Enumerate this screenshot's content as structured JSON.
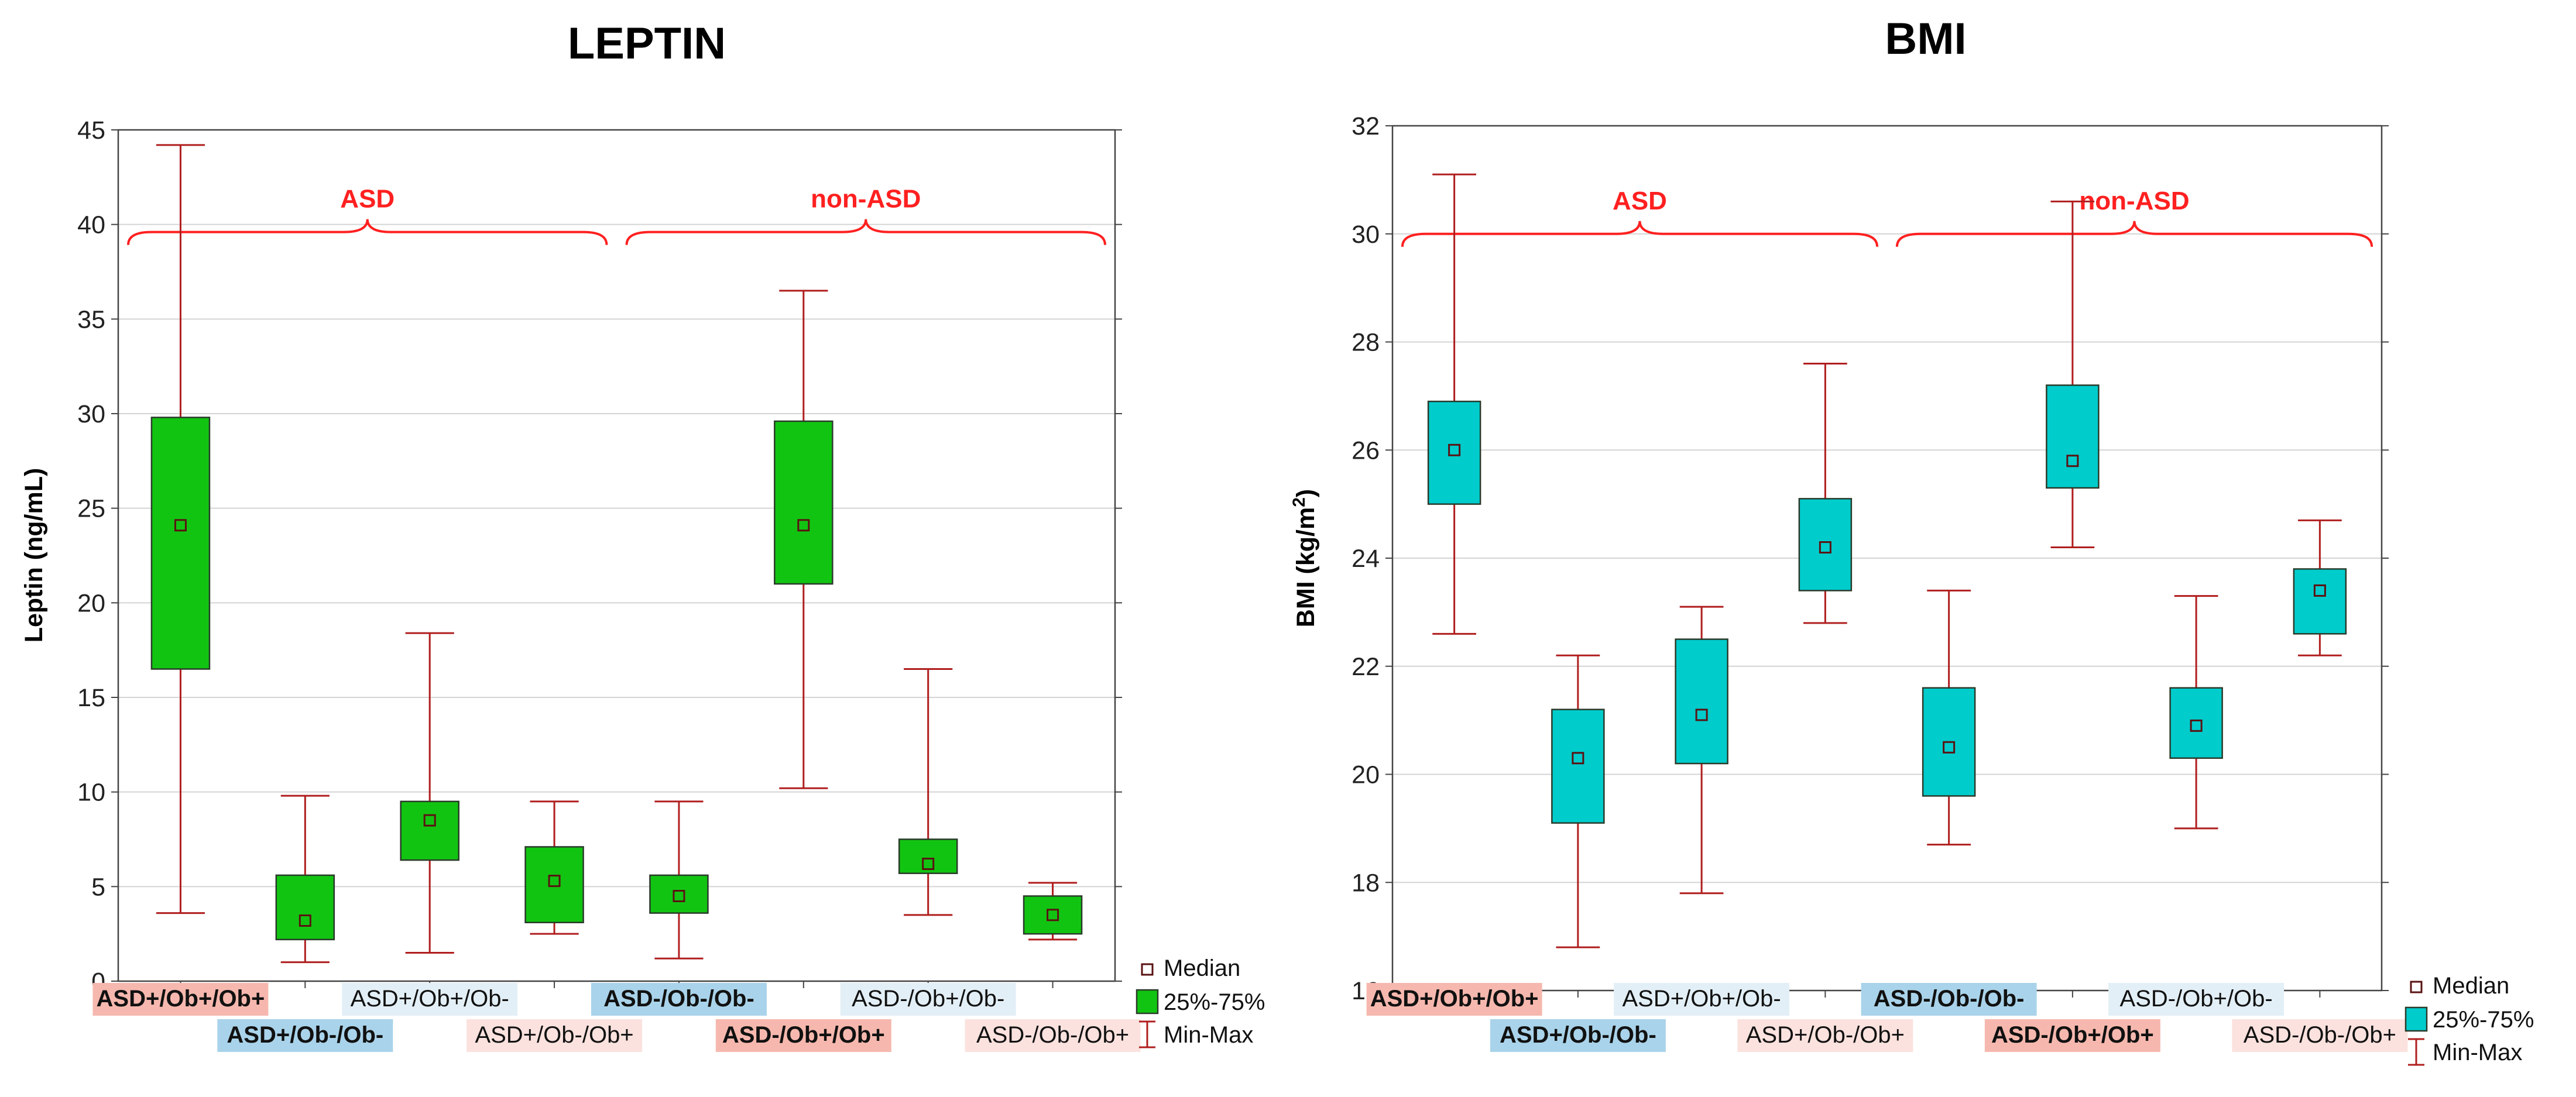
{
  "colors": {
    "whisker": "#b01e1e",
    "median_marker": "#5a1212",
    "group_brace": "#ff2020",
    "grid": "#d4d4d4",
    "axis": "#444444",
    "cat_pink": "#f6b8ae",
    "cat_blue": "#a9d3ea",
    "cat_lightblue": "#e3eff6",
    "cat_lightpink": "#fbe2de"
  },
  "chart_data": [
    {
      "type": "box",
      "title": "LEPTIN",
      "ylabel": "Leptin (ng/mL)",
      "xlabel": "",
      "ylim": [
        0,
        45
      ],
      "yticks": [
        0,
        5,
        10,
        15,
        20,
        25,
        30,
        35,
        40,
        45
      ],
      "grid": true,
      "box_color": "#12c412",
      "categories": [
        "ASD+/Ob+/Ob+",
        "ASD+/Ob-/Ob-",
        "ASD+/Ob+/Ob-",
        "ASD+/Ob-/Ob+",
        "ASD-/Ob-/Ob-",
        "ASD-/Ob+/Ob+",
        "ASD-/Ob+/Ob-",
        "ASD-/Ob-/Ob+"
      ],
      "category_label_style": [
        "pink",
        "blue",
        "lightblue",
        "lightpink",
        "blue",
        "pink",
        "lightblue",
        "lightpink"
      ],
      "min": [
        3.6,
        1.0,
        1.5,
        2.5,
        1.2,
        10.2,
        3.5,
        2.2
      ],
      "q1": [
        16.5,
        2.2,
        6.4,
        3.1,
        3.6,
        21.0,
        5.7,
        2.5
      ],
      "median": [
        24.1,
        3.2,
        8.5,
        5.3,
        4.5,
        24.1,
        6.2,
        3.5
      ],
      "q3": [
        29.8,
        5.6,
        9.5,
        7.1,
        5.6,
        29.6,
        7.5,
        4.5
      ],
      "max": [
        44.2,
        9.8,
        18.4,
        9.5,
        9.5,
        36.5,
        16.5,
        5.2
      ],
      "groups": [
        {
          "label": "ASD",
          "from": 0,
          "to": 3
        },
        {
          "label": "non-ASD",
          "from": 4,
          "to": 7
        }
      ],
      "group_brace_y": 39.6,
      "legend": [
        "Median",
        "25%-75%",
        "Min-Max"
      ],
      "legend_position": "bottom-right"
    },
    {
      "type": "box",
      "title": "BMI",
      "ylabel": "BMI (kg/m",
      "ylabel_superscript": "2",
      "ylabel_suffix": ")",
      "xlabel": "",
      "ylim": [
        16,
        32
      ],
      "yticks": [
        16,
        18,
        20,
        22,
        24,
        26,
        28,
        30,
        32
      ],
      "grid": true,
      "box_color": "#00cccc",
      "categories": [
        "ASD+/Ob+/Ob+",
        "ASD+/Ob-/Ob-",
        "ASD+/Ob+/Ob-",
        "ASD+/Ob-/Ob+",
        "ASD-/Ob-/Ob-",
        "ASD-/Ob+/Ob+",
        "ASD-/Ob+/Ob-",
        "ASD-/Ob-/Ob+"
      ],
      "category_label_style": [
        "pink",
        "blue",
        "lightblue",
        "lightpink",
        "blue",
        "pink",
        "lightblue",
        "lightpink"
      ],
      "min": [
        22.6,
        16.8,
        17.8,
        22.8,
        18.7,
        24.2,
        19.0,
        22.2
      ],
      "q1": [
        25.0,
        19.1,
        20.2,
        23.4,
        19.6,
        25.3,
        20.3,
        22.6
      ],
      "median": [
        26.0,
        20.3,
        21.1,
        24.2,
        20.5,
        25.8,
        20.9,
        23.4
      ],
      "q3": [
        26.9,
        21.2,
        22.5,
        25.1,
        21.6,
        27.2,
        21.6,
        23.8
      ],
      "max": [
        31.1,
        22.2,
        23.1,
        27.6,
        23.4,
        30.6,
        23.3,
        24.7
      ],
      "groups": [
        {
          "label": "ASD",
          "from": 0,
          "to": 3
        },
        {
          "label": "non-ASD",
          "from": 4,
          "to": 7
        }
      ],
      "group_brace_y": 30.0,
      "legend": [
        "Median",
        "25%-75%",
        "Min-Max"
      ],
      "legend_position": "bottom-right"
    }
  ]
}
